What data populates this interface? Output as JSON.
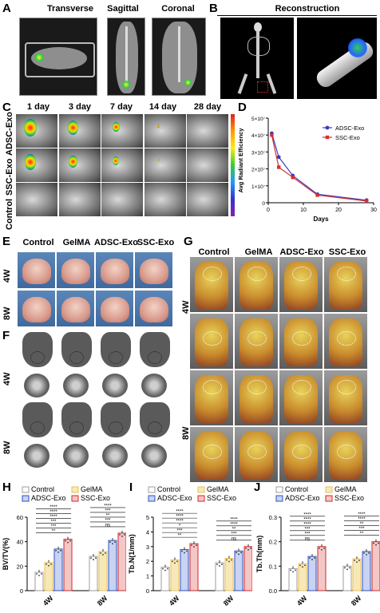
{
  "panels": {
    "A": {
      "letter": "A",
      "headers": [
        "Transverse",
        "Sagittal",
        "Coronal"
      ]
    },
    "B": {
      "letter": "B",
      "header": "Reconstruction"
    },
    "C": {
      "letter": "C",
      "days": [
        "1 day",
        "3 day",
        "7 day",
        "14 day",
        "28 day"
      ],
      "rows": [
        "ADSC-Exo",
        "SSC-Exo",
        "Control"
      ]
    },
    "D": {
      "letter": "D"
    },
    "E": {
      "letter": "E",
      "groups": [
        "Control",
        "GelMA",
        "ADSC-Exo",
        "SSC-Exo"
      ],
      "rows": [
        "4W",
        "8W"
      ]
    },
    "F": {
      "letter": "F",
      "rows": [
        "4W",
        "8W"
      ]
    },
    "G": {
      "letter": "G",
      "groups": [
        "Control",
        "GelMA",
        "ADSC-Exo",
        "SSC-Exo"
      ],
      "rows": [
        "4W",
        "8W"
      ]
    },
    "H": {
      "letter": "H"
    },
    "I": {
      "letter": "I"
    },
    "J": {
      "letter": "J"
    }
  },
  "colors": {
    "control": "#9e9e9e",
    "gelma": "#e8c15a",
    "adsc": "#3050c0",
    "ssc": "#d02828",
    "lineAdsc": "#3a3ab8",
    "lineSsc": "#d43030"
  },
  "chart_data": [
    {
      "type": "line",
      "panel": "D",
      "x": [
        1,
        3,
        7,
        14,
        28
      ],
      "series": [
        {
          "name": "ADSC-Exo",
          "values": [
            41000000.0,
            27000000.0,
            16000000.0,
            5000000.0,
            1500000.0
          ]
        },
        {
          "name": "SSC-Exo",
          "values": [
            40000000.0,
            21000000.0,
            15000000.0,
            4500000.0,
            1000000.0
          ]
        }
      ],
      "xlabel": "Days",
      "ylabel": "Avg Radiant Efficiency",
      "xlim": [
        0,
        30
      ],
      "ylim": [
        0,
        50000000.0
      ],
      "xticks": [
        "0",
        "10",
        "20",
        "30"
      ],
      "yticks": [
        "0",
        "1×10⁷",
        "2×10⁷",
        "3×10⁷",
        "4×10⁷",
        "5×10⁷"
      ]
    },
    {
      "type": "bar",
      "panel": "H",
      "categories": [
        "4W",
        "8W"
      ],
      "series": [
        {
          "name": "Control",
          "values": [
            15,
            28
          ]
        },
        {
          "name": "GelMA",
          "values": [
            23,
            32
          ]
        },
        {
          "name": "ADSC-Exo",
          "values": [
            34,
            41
          ]
        },
        {
          "name": "SSC-Exo",
          "values": [
            42,
            47
          ]
        }
      ],
      "ylabel": "BV/TV(%)",
      "ylim": [
        0,
        60
      ],
      "yticks": [
        "0",
        "20",
        "40",
        "60"
      ],
      "sig4W": [
        "**",
        "***",
        "***",
        "****",
        "****",
        "****"
      ],
      "sig8W": [
        "ns",
        "***",
        "**",
        "***",
        "****"
      ]
    },
    {
      "type": "bar",
      "panel": "I",
      "categories": [
        "4W",
        "8W"
      ],
      "series": [
        {
          "name": "Control",
          "values": [
            1.6,
            1.9
          ]
        },
        {
          "name": "GelMA",
          "values": [
            2.1,
            2.2
          ]
        },
        {
          "name": "ADSC-Exo",
          "values": [
            2.8,
            2.7
          ]
        },
        {
          "name": "SSC-Exo",
          "values": [
            3.2,
            3.0
          ]
        }
      ],
      "ylabel": "Tb.N(1/mm)",
      "ylim": [
        0,
        5
      ],
      "yticks": [
        "0",
        "1",
        "2",
        "3",
        "4",
        "5"
      ],
      "sig4W": [
        "**",
        "***",
        "*",
        "****",
        "****",
        "****"
      ],
      "sig8W": [
        "ns",
        "***",
        "**",
        "****",
        "****"
      ]
    },
    {
      "type": "bar",
      "panel": "J",
      "categories": [
        "4W",
        "8W"
      ],
      "series": [
        {
          "name": "Control",
          "values": [
            0.09,
            0.1
          ]
        },
        {
          "name": "GelMA",
          "values": [
            0.11,
            0.13
          ]
        },
        {
          "name": "ADSC-Exo",
          "values": [
            0.14,
            0.16
          ]
        },
        {
          "name": "SSC-Exo",
          "values": [
            0.18,
            0.2
          ]
        }
      ],
      "ylabel": "Tb.Th(mm)",
      "ylim": [
        0,
        0.3
      ],
      "yticks": [
        "0.0",
        "0.1",
        "0.2",
        "0.3"
      ],
      "sig4W": [
        "ns",
        "***",
        "***",
        "****",
        "****",
        "****"
      ],
      "sig8W": [
        "**",
        "***",
        "**",
        "****",
        "****"
      ]
    }
  ]
}
